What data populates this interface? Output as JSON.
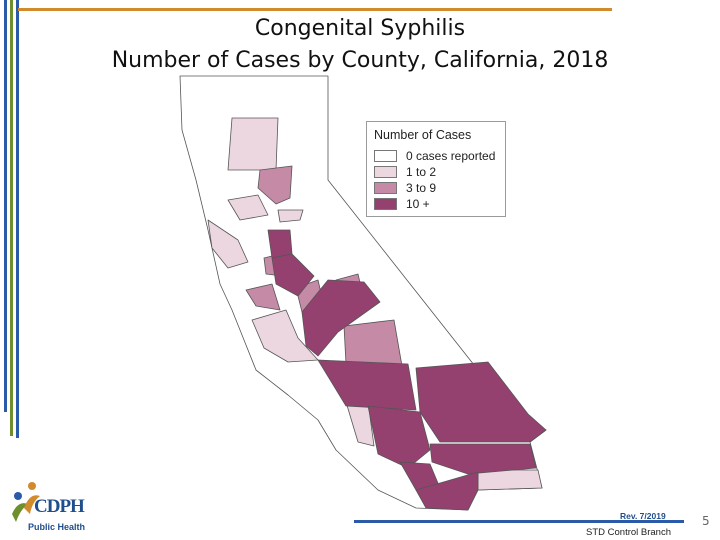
{
  "title_line1": "Congenital Syphilis",
  "title_line2": "Number of Cases by County, California, 2018",
  "legend": {
    "title": "Number of Cases",
    "items": [
      {
        "label": "0 cases reported",
        "color": "#ffffff"
      },
      {
        "label": "1 to 2",
        "color": "#ecd7e0"
      },
      {
        "label": "3 to 9",
        "color": "#c48aa6"
      },
      {
        "label": "10 +",
        "color": "#94416f"
      }
    ]
  },
  "colors": {
    "title_rule": "#d18a2c",
    "bar_blue": "#2a5aa8",
    "bar_green": "#6f8f2c",
    "boundary": "#555555"
  },
  "logo": {
    "text": "CDPH",
    "sub": "Public Health"
  },
  "footer": {
    "revision": "Rev. 7/2019",
    "branch": "STD Control Branch",
    "page_number": "5"
  }
}
